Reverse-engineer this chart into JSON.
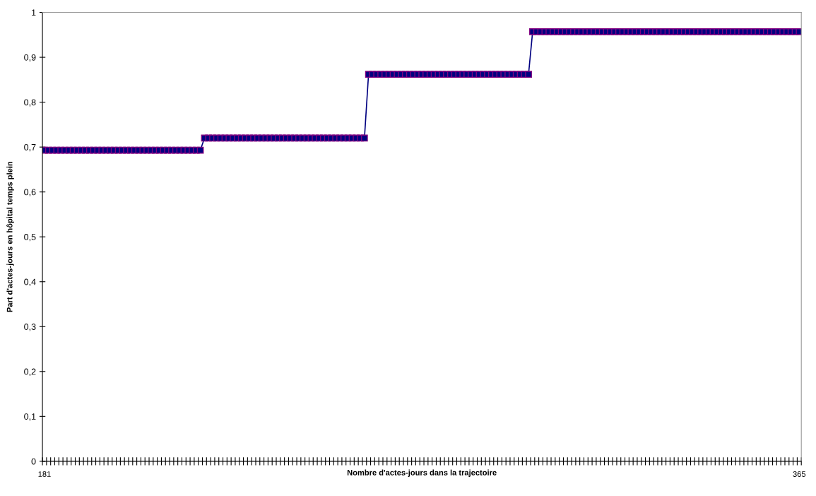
{
  "chart_data": {
    "type": "line",
    "xlabel": "Nombre d'actes-jours dans la trajectoire",
    "ylabel": "Part d'actes-jours en hôpital temps plein",
    "categories": [
      "181",
      null,
      null,
      null,
      null,
      null,
      null,
      null,
      null,
      null,
      null,
      null,
      null,
      null,
      null,
      null,
      null,
      null,
      null,
      null,
      null,
      null,
      null,
      null,
      null,
      null,
      null,
      null,
      null,
      null,
      null,
      null,
      null,
      null,
      null,
      null,
      null,
      null,
      null,
      null,
      null,
      null,
      null,
      null,
      null,
      null,
      null,
      null,
      null,
      null,
      null,
      null,
      null,
      null,
      null,
      null,
      null,
      null,
      null,
      null,
      null,
      null,
      null,
      null,
      null,
      null,
      null,
      null,
      null,
      null,
      null,
      null,
      null,
      null,
      null,
      null,
      null,
      null,
      null,
      null,
      null,
      null,
      null,
      null,
      null,
      null,
      null,
      null,
      null,
      null,
      null,
      null,
      null,
      null,
      null,
      null,
      null,
      null,
      null,
      null,
      null,
      null,
      null,
      null,
      null,
      null,
      null,
      null,
      null,
      null,
      null,
      null,
      null,
      null,
      null,
      null,
      null,
      null,
      null,
      null,
      null,
      null,
      null,
      null,
      null,
      null,
      null,
      null,
      null,
      null,
      null,
      null,
      null,
      null,
      null,
      null,
      null,
      null,
      null,
      null,
      null,
      null,
      null,
      null,
      null,
      null,
      null,
      null,
      null,
      null,
      null,
      null,
      null,
      null,
      null,
      null,
      null,
      null,
      null,
      null,
      null,
      null,
      null,
      null,
      null,
      null,
      null,
      null,
      null,
      null,
      null,
      null,
      null,
      null,
      null,
      null,
      null,
      null,
      null,
      null,
      null,
      null,
      null,
      null,
      "365"
    ],
    "series": [
      {
        "color": "#000080",
        "values": [
          0.693,
          0.693,
          0.693,
          0.693,
          0.693,
          0.693,
          0.693,
          0.693,
          0.693,
          0.693,
          0.693,
          0.693,
          0.693,
          0.693,
          0.693,
          0.693,
          0.693,
          0.693,
          0.693,
          0.693,
          0.693,
          0.693,
          0.693,
          0.693,
          0.693,
          0.693,
          0.693,
          0.693,
          0.693,
          0.693,
          0.693,
          0.693,
          0.693,
          0.693,
          0.693,
          0.693,
          0.693,
          0.693,
          0.693,
          0.72,
          0.72,
          0.72,
          0.72,
          0.72,
          0.72,
          0.72,
          0.72,
          0.72,
          0.72,
          0.72,
          0.72,
          0.72,
          0.72,
          0.72,
          0.72,
          0.72,
          0.72,
          0.72,
          0.72,
          0.72,
          0.72,
          0.72,
          0.72,
          0.72,
          0.72,
          0.72,
          0.72,
          0.72,
          0.72,
          0.72,
          0.72,
          0.72,
          0.72,
          0.72,
          0.72,
          0.72,
          0.72,
          0.72,
          0.72,
          0.862,
          0.862,
          0.862,
          0.862,
          0.862,
          0.862,
          0.862,
          0.862,
          0.862,
          0.862,
          0.862,
          0.862,
          0.862,
          0.862,
          0.862,
          0.862,
          0.862,
          0.862,
          0.862,
          0.862,
          0.862,
          0.862,
          0.862,
          0.862,
          0.862,
          0.862,
          0.862,
          0.862,
          0.862,
          0.862,
          0.862,
          0.862,
          0.862,
          0.862,
          0.862,
          0.862,
          0.862,
          0.862,
          0.862,
          0.862,
          0.957,
          0.957,
          0.957,
          0.957,
          0.957,
          0.957,
          0.957,
          0.957,
          0.957,
          0.957,
          0.957,
          0.957,
          0.957,
          0.957,
          0.957,
          0.957,
          0.957,
          0.957,
          0.957,
          0.957,
          0.957,
          0.957,
          0.957,
          0.957,
          0.957,
          0.957,
          0.957,
          0.957,
          0.957,
          0.957,
          0.957,
          0.957,
          0.957,
          0.957,
          0.957,
          0.957,
          0.957,
          0.957,
          0.957,
          0.957,
          0.957,
          0.957,
          0.957,
          0.957,
          0.957,
          0.957,
          0.957,
          0.957,
          0.957,
          0.957,
          0.957,
          0.957,
          0.957,
          0.957,
          0.957,
          0.957,
          0.957,
          0.957,
          0.957,
          0.957,
          0.957,
          0.957,
          0.957,
          0.957,
          0.957,
          0.957
        ]
      }
    ],
    "ylim": [
      0,
      1
    ],
    "yticks": [
      0,
      {
        "value": 0.1,
        "label": "0,1"
      },
      {
        "value": 0.2,
        "label": "0,2"
      },
      {
        "value": 0.3,
        "label": "0,3"
      },
      {
        "value": 0.4,
        "label": "0,4"
      },
      {
        "value": 0.5,
        "label": "0,5"
      },
      {
        "value": 0.6,
        "label": "0,6"
      },
      {
        "value": 0.7,
        "label": "0,7"
      },
      {
        "value": 0.8,
        "label": "0,8"
      },
      {
        "value": 0.9,
        "label": "0,9"
      },
      1
    ],
    "marker": "square",
    "line_style": "solid",
    "grid": false,
    "legend": false
  }
}
